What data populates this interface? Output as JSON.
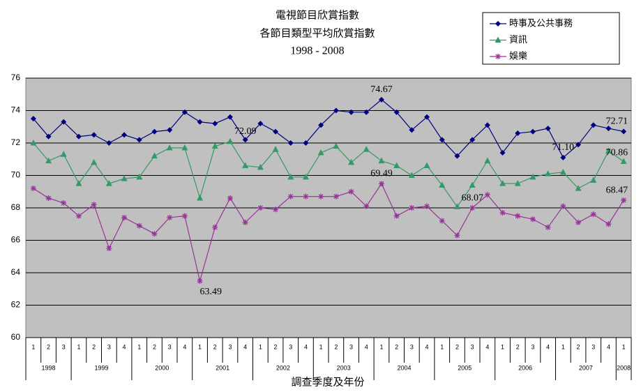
{
  "chart_data": {
    "type": "line",
    "title": "電視節目欣賞指數",
    "subtitle": "各節目類型平均欣賞指數",
    "period": "1998 - 2008",
    "x_label": "調查季度及年份",
    "categories": [
      "1",
      "2",
      "3",
      "1",
      "2",
      "3",
      "4",
      "1",
      "2",
      "3",
      "4",
      "1",
      "2",
      "3",
      "4",
      "1",
      "2",
      "3",
      "4",
      "1",
      "2",
      "3",
      "4",
      "1",
      "2",
      "3",
      "4",
      "1",
      "2",
      "3",
      "4",
      "1",
      "2",
      "3",
      "4",
      "1",
      "2",
      "3",
      "4",
      "1"
    ],
    "years": [
      "1998",
      "1999",
      "2000",
      "2001",
      "2002",
      "2003",
      "2004",
      "2005",
      "2006",
      "2007",
      "2008"
    ],
    "ylim": [
      60,
      76
    ],
    "yticks": [
      60,
      62,
      64,
      66,
      68,
      70,
      72,
      74,
      76
    ],
    "grid": true,
    "legend": "top-right",
    "series": [
      {
        "name": "時事及公共事務",
        "color": "#000080",
        "marker": "diamond",
        "values": [
          73.5,
          72.4,
          73.3,
          72.4,
          72.5,
          72.0,
          72.5,
          72.2,
          72.7,
          72.8,
          73.9,
          73.3,
          73.2,
          73.6,
          72.2,
          73.2,
          72.7,
          72.0,
          72.0,
          73.1,
          74.0,
          73.9,
          73.9,
          74.67,
          73.9,
          72.8,
          73.6,
          72.2,
          71.2,
          72.2,
          73.1,
          71.4,
          72.6,
          72.7,
          72.9,
          71.1,
          71.9,
          73.1,
          72.9,
          72.71
        ],
        "value_labels": [
          null,
          null,
          null,
          null,
          null,
          null,
          null,
          null,
          null,
          null,
          null,
          null,
          null,
          null,
          null,
          null,
          null,
          null,
          null,
          null,
          null,
          null,
          null,
          "74.67",
          null,
          null,
          null,
          null,
          null,
          null,
          null,
          null,
          null,
          null,
          null,
          "71.10",
          null,
          null,
          null,
          "72.71"
        ]
      },
      {
        "name": "資訊",
        "color": "#339966",
        "marker": "triangle",
        "values": [
          72.0,
          70.9,
          71.3,
          69.5,
          70.8,
          69.5,
          69.8,
          69.9,
          71.2,
          71.7,
          71.7,
          68.6,
          71.8,
          72.09,
          70.6,
          70.5,
          71.6,
          69.9,
          69.9,
          71.4,
          71.8,
          70.8,
          71.6,
          70.9,
          70.6,
          70.0,
          70.6,
          69.4,
          68.07,
          69.4,
          70.9,
          69.5,
          69.5,
          69.9,
          70.1,
          70.2,
          69.2,
          69.7,
          71.5,
          70.86
        ],
        "value_labels": [
          null,
          null,
          null,
          null,
          null,
          null,
          null,
          null,
          null,
          null,
          null,
          null,
          null,
          "72.09",
          null,
          null,
          null,
          null,
          null,
          null,
          null,
          null,
          null,
          null,
          null,
          null,
          null,
          null,
          "68.07",
          null,
          null,
          null,
          null,
          null,
          null,
          null,
          null,
          null,
          null,
          "70.86"
        ]
      },
      {
        "name": "娛樂",
        "color": "#993399",
        "marker": "asterisk",
        "values": [
          69.2,
          68.6,
          68.3,
          67.5,
          68.2,
          65.5,
          67.4,
          66.9,
          66.4,
          67.4,
          67.5,
          63.49,
          66.8,
          68.6,
          67.1,
          68.0,
          67.9,
          68.7,
          68.7,
          68.7,
          68.7,
          69.0,
          68.1,
          69.49,
          67.5,
          68.0,
          68.1,
          67.2,
          66.3,
          68.0,
          68.8,
          67.7,
          67.5,
          67.3,
          66.8,
          68.1,
          67.1,
          67.6,
          67.0,
          68.47
        ],
        "value_labels": [
          null,
          null,
          null,
          null,
          null,
          null,
          null,
          null,
          null,
          null,
          null,
          "63.49",
          null,
          null,
          null,
          null,
          null,
          null,
          null,
          null,
          null,
          null,
          null,
          "69.49",
          null,
          null,
          null,
          null,
          null,
          null,
          null,
          null,
          null,
          null,
          null,
          null,
          null,
          null,
          null,
          "68.47"
        ]
      }
    ]
  }
}
